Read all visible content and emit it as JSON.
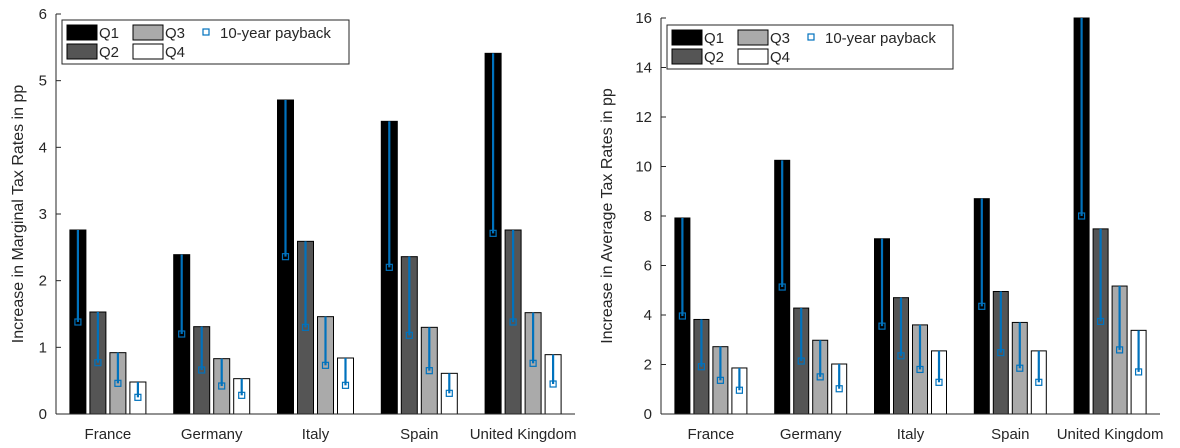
{
  "colors": {
    "q1": "#000000",
    "q2": "#555555",
    "q3": "#aaaaaa",
    "q4": "#ffffff",
    "payback": "#0072bd",
    "axis": "#262626"
  },
  "legend": {
    "q1": "Q1",
    "q2": "Q2",
    "q3": "Q3",
    "q4": "Q4",
    "payback": "10-year payback"
  },
  "chart_data": [
    {
      "type": "bar",
      "ylabel": "Increase in Marginal Tax Rates in pp",
      "ylim": [
        0,
        6
      ],
      "yticks": [
        0,
        1,
        2,
        3,
        4,
        5,
        6
      ],
      "grid": false,
      "legend_position": "top-left",
      "categories": [
        "France",
        "Germany",
        "Italy",
        "Spain",
        "United Kingdom"
      ],
      "series": [
        {
          "name": "Q1",
          "values": [
            2.76,
            2.39,
            4.71,
            4.39,
            5.41
          ]
        },
        {
          "name": "Q2",
          "values": [
            1.53,
            1.31,
            2.59,
            2.36,
            2.76
          ]
        },
        {
          "name": "Q3",
          "values": [
            0.92,
            0.83,
            1.46,
            1.3,
            1.52
          ]
        },
        {
          "name": "Q4",
          "values": [
            0.48,
            0.53,
            0.84,
            0.61,
            0.89
          ]
        }
      ],
      "payback": [
        [
          1.38,
          0.77,
          0.46,
          0.25
        ],
        [
          1.2,
          0.66,
          0.42,
          0.28
        ],
        [
          2.36,
          1.3,
          0.73,
          0.43
        ],
        [
          2.2,
          1.18,
          0.65,
          0.31
        ],
        [
          2.71,
          1.38,
          0.76,
          0.45
        ]
      ]
    },
    {
      "type": "bar",
      "ylabel": "Increase in Average Tax Rates in pp",
      "ylim": [
        0,
        16
      ],
      "yticks": [
        0,
        2,
        4,
        6,
        8,
        10,
        12,
        14,
        16
      ],
      "grid": false,
      "legend_position": "top-left",
      "categories": [
        "France",
        "Germany",
        "Italy",
        "Spain",
        "United Kingdom"
      ],
      "series": [
        {
          "name": "Q1",
          "values": [
            7.92,
            10.25,
            7.08,
            8.7,
            16.0
          ]
        },
        {
          "name": "Q2",
          "values": [
            3.82,
            4.28,
            4.7,
            4.95,
            7.48
          ]
        },
        {
          "name": "Q3",
          "values": [
            2.72,
            2.98,
            3.6,
            3.7,
            5.17
          ]
        },
        {
          "name": "Q4",
          "values": [
            1.86,
            2.02,
            2.55,
            2.55,
            3.38
          ]
        }
      ],
      "payback": [
        [
          3.96,
          1.91,
          1.36,
          0.96
        ],
        [
          5.13,
          2.14,
          1.5,
          1.02
        ],
        [
          3.55,
          2.35,
          1.8,
          1.28
        ],
        [
          4.35,
          2.48,
          1.85,
          1.28
        ],
        [
          8.0,
          3.74,
          2.59,
          1.7
        ]
      ]
    }
  ]
}
